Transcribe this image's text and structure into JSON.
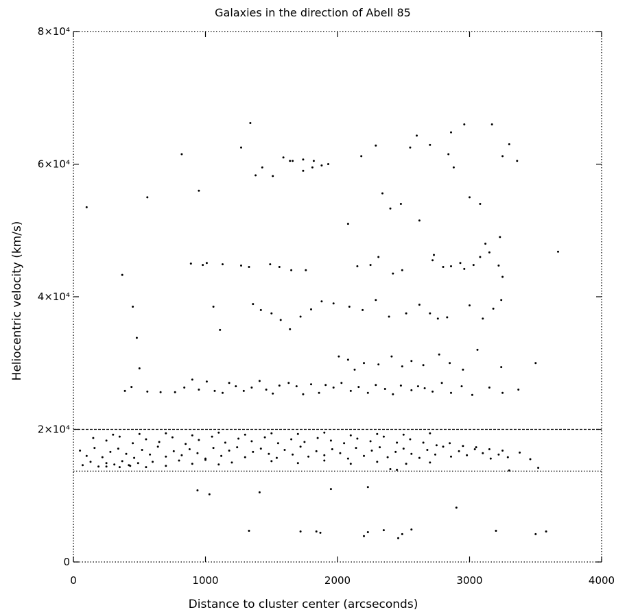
{
  "chart_data": {
    "type": "scatter",
    "title": "Galaxies in the direction of Abell 85",
    "xlabel": "Distance to cluster center (arcseconds)",
    "ylabel": "Heliocentric velocity (km/s)",
    "xlim": [
      0,
      4000
    ],
    "ylim": [
      0,
      80000
    ],
    "x_ticks": [
      {
        "value": 0,
        "label": "0"
      },
      {
        "value": 1000,
        "label": "1000"
      },
      {
        "value": 2000,
        "label": "2000"
      },
      {
        "value": 3000,
        "label": "3000"
      },
      {
        "value": 4000,
        "label": "4000"
      }
    ],
    "y_ticks": [
      {
        "value": 0,
        "label": "0"
      },
      {
        "value": 20000,
        "label": "2×10⁴"
      },
      {
        "value": 40000,
        "label": "4×10⁴"
      },
      {
        "value": 60000,
        "label": "6×10⁴"
      },
      {
        "value": 80000,
        "label": "8×10⁴"
      }
    ],
    "reference_lines": [
      {
        "y": 20000,
        "style": "dashed"
      },
      {
        "y": 13700,
        "style": "dotted"
      }
    ],
    "grid": false,
    "frame_style": "dotted",
    "marker_color": "#000000",
    "series": [
      {
        "values": [
          [
            100,
            53500
          ],
          [
            560,
            55000
          ],
          [
            370,
            43300
          ],
          [
            450,
            38500
          ],
          [
            480,
            33800
          ],
          [
            500,
            29200
          ],
          [
            820,
            61500
          ],
          [
            950,
            56000
          ],
          [
            1010,
            45100
          ],
          [
            1060,
            38500
          ],
          [
            1110,
            35000
          ],
          [
            1270,
            62500
          ],
          [
            1340,
            66200
          ],
          [
            1380,
            58300
          ],
          [
            1430,
            59500
          ],
          [
            1510,
            58200
          ],
          [
            1590,
            61000
          ],
          [
            1660,
            60500
          ],
          [
            1740,
            60700
          ],
          [
            1810,
            59500
          ],
          [
            1880,
            59800
          ],
          [
            1640,
            60500
          ],
          [
            1740,
            59000
          ],
          [
            1820,
            60500
          ],
          [
            1930,
            60000
          ],
          [
            2080,
            51000
          ],
          [
            2180,
            61200
          ],
          [
            2290,
            62800
          ],
          [
            2340,
            55600
          ],
          [
            2400,
            53300
          ],
          [
            2480,
            54000
          ],
          [
            2550,
            62500
          ],
          [
            2620,
            51500
          ],
          [
            2730,
            46300
          ],
          [
            2840,
            61500
          ],
          [
            2880,
            59500
          ],
          [
            3000,
            55000
          ],
          [
            3080,
            54000
          ],
          [
            3120,
            48000
          ],
          [
            3170,
            66000
          ],
          [
            3230,
            49000
          ],
          [
            3300,
            63000
          ],
          [
            3360,
            60500
          ],
          [
            3670,
            46800
          ],
          [
            890,
            45000
          ],
          [
            980,
            44800
          ],
          [
            1130,
            44900
          ],
          [
            1270,
            44700
          ],
          [
            1330,
            44500
          ],
          [
            1490,
            44900
          ],
          [
            1560,
            44500
          ],
          [
            1650,
            44000
          ],
          [
            1760,
            44000
          ],
          [
            2150,
            44600
          ],
          [
            2250,
            44800
          ],
          [
            2310,
            46000
          ],
          [
            2420,
            43500
          ],
          [
            2490,
            44000
          ],
          [
            2720,
            45500
          ],
          [
            2800,
            44500
          ],
          [
            2860,
            44600
          ],
          [
            2930,
            45100
          ],
          [
            2960,
            44200
          ],
          [
            3030,
            44800
          ],
          [
            3080,
            46000
          ],
          [
            3150,
            46700
          ],
          [
            3220,
            44700
          ],
          [
            3250,
            43000
          ],
          [
            1360,
            38900
          ],
          [
            1420,
            38000
          ],
          [
            1500,
            37500
          ],
          [
            1570,
            36500
          ],
          [
            1640,
            35100
          ],
          [
            1720,
            37000
          ],
          [
            1800,
            38100
          ],
          [
            1880,
            39300
          ],
          [
            1970,
            39000
          ],
          [
            2090,
            38500
          ],
          [
            2190,
            38000
          ],
          [
            2290,
            39500
          ],
          [
            2390,
            37000
          ],
          [
            2520,
            37500
          ],
          [
            2620,
            38800
          ],
          [
            2700,
            37500
          ],
          [
            2760,
            36700
          ],
          [
            2830,
            36900
          ],
          [
            3000,
            38700
          ],
          [
            3100,
            36700
          ],
          [
            3180,
            38200
          ],
          [
            3240,
            39500
          ],
          [
            390,
            25800
          ],
          [
            440,
            26400
          ],
          [
            560,
            25700
          ],
          [
            660,
            25600
          ],
          [
            770,
            25600
          ],
          [
            840,
            26300
          ],
          [
            900,
            27500
          ],
          [
            950,
            26000
          ],
          [
            1010,
            27200
          ],
          [
            1070,
            25800
          ],
          [
            1130,
            25500
          ],
          [
            1180,
            27000
          ],
          [
            1230,
            26500
          ],
          [
            1290,
            25800
          ],
          [
            1350,
            26300
          ],
          [
            1410,
            27300
          ],
          [
            1460,
            26000
          ],
          [
            1510,
            25400
          ],
          [
            1560,
            26600
          ],
          [
            1630,
            27000
          ],
          [
            1690,
            26500
          ],
          [
            1740,
            25300
          ],
          [
            1800,
            26800
          ],
          [
            1860,
            25500
          ],
          [
            1910,
            26700
          ],
          [
            1970,
            26300
          ],
          [
            2030,
            27000
          ],
          [
            2100,
            25800
          ],
          [
            2160,
            26400
          ],
          [
            2230,
            25500
          ],
          [
            2290,
            26700
          ],
          [
            2360,
            26100
          ],
          [
            2420,
            25300
          ],
          [
            2480,
            26600
          ],
          [
            2560,
            25900
          ],
          [
            2610,
            26500
          ],
          [
            2660,
            26200
          ],
          [
            2720,
            25700
          ],
          [
            2790,
            27000
          ],
          [
            2860,
            25500
          ],
          [
            2940,
            26500
          ],
          [
            3020,
            25200
          ],
          [
            3150,
            26300
          ],
          [
            3250,
            25500
          ],
          [
            3370,
            26000
          ],
          [
            2010,
            31000
          ],
          [
            2080,
            30500
          ],
          [
            2130,
            29000
          ],
          [
            2200,
            30000
          ],
          [
            2310,
            29800
          ],
          [
            2410,
            31000
          ],
          [
            2490,
            29500
          ],
          [
            2560,
            30300
          ],
          [
            2650,
            29700
          ],
          [
            2770,
            31300
          ],
          [
            2850,
            30000
          ],
          [
            2950,
            29000
          ],
          [
            3060,
            32000
          ],
          [
            3240,
            29400
          ],
          [
            3500,
            30000
          ],
          [
            2600,
            64300
          ],
          [
            2700,
            62900
          ],
          [
            2860,
            64800
          ],
          [
            2960,
            66000
          ],
          [
            3250,
            61200
          ],
          [
            50,
            16800
          ],
          [
            100,
            16000
          ],
          [
            160,
            17200
          ],
          [
            220,
            15800
          ],
          [
            280,
            16600
          ],
          [
            340,
            17100
          ],
          [
            400,
            16300
          ],
          [
            460,
            15700
          ],
          [
            520,
            16900
          ],
          [
            580,
            16200
          ],
          [
            640,
            17400
          ],
          [
            700,
            15900
          ],
          [
            760,
            16700
          ],
          [
            820,
            16100
          ],
          [
            880,
            17000
          ],
          [
            940,
            16400
          ],
          [
            1000,
            15600
          ],
          [
            1060,
            17200
          ],
          [
            1120,
            16000
          ],
          [
            1180,
            16800
          ],
          [
            1240,
            17300
          ],
          [
            1300,
            15800
          ],
          [
            1360,
            16600
          ],
          [
            1420,
            17100
          ],
          [
            1480,
            16300
          ],
          [
            1540,
            15700
          ],
          [
            1600,
            16900
          ],
          [
            1660,
            16200
          ],
          [
            1720,
            17400
          ],
          [
            1780,
            15900
          ],
          [
            1840,
            16700
          ],
          [
            1900,
            16100
          ],
          [
            1960,
            17000
          ],
          [
            2020,
            16400
          ],
          [
            2080,
            15600
          ],
          [
            2140,
            17200
          ],
          [
            2200,
            16000
          ],
          [
            2260,
            16800
          ],
          [
            2320,
            17300
          ],
          [
            2380,
            15800
          ],
          [
            2440,
            16600
          ],
          [
            2500,
            17100
          ],
          [
            2560,
            16300
          ],
          [
            2620,
            15700
          ],
          [
            2680,
            16900
          ],
          [
            2740,
            16200
          ],
          [
            2800,
            17400
          ],
          [
            2860,
            15900
          ],
          [
            2920,
            16700
          ],
          [
            2980,
            16100
          ],
          [
            3040,
            17000
          ],
          [
            3100,
            16400
          ],
          [
            3160,
            15600
          ],
          [
            3220,
            16200
          ],
          [
            3290,
            15800
          ],
          [
            3380,
            16500
          ],
          [
            3460,
            15500
          ],
          [
            3520,
            14200
          ],
          [
            70,
            14600
          ],
          [
            130,
            15100
          ],
          [
            190,
            14400
          ],
          [
            250,
            14900
          ],
          [
            310,
            14700
          ],
          [
            370,
            15200
          ],
          [
            430,
            14500
          ],
          [
            490,
            14900
          ],
          [
            550,
            14300
          ],
          [
            150,
            18700
          ],
          [
            250,
            18300
          ],
          [
            350,
            18900
          ],
          [
            450,
            17900
          ],
          [
            550,
            18500
          ],
          [
            650,
            18100
          ],
          [
            750,
            18800
          ],
          [
            850,
            17800
          ],
          [
            950,
            18400
          ],
          [
            1050,
            18900
          ],
          [
            1150,
            18000
          ],
          [
            1250,
            18600
          ],
          [
            1350,
            18200
          ],
          [
            1450,
            18800
          ],
          [
            1550,
            17900
          ],
          [
            1650,
            18500
          ],
          [
            1750,
            18100
          ],
          [
            1850,
            18700
          ],
          [
            1950,
            18300
          ],
          [
            2050,
            17900
          ],
          [
            2150,
            18600
          ],
          [
            2250,
            18200
          ],
          [
            2350,
            18900
          ],
          [
            2450,
            18000
          ],
          [
            2550,
            18500
          ],
          [
            2650,
            18000
          ],
          [
            2750,
            17600
          ],
          [
            2850,
            17900
          ],
          [
            2950,
            17500
          ],
          [
            3050,
            17300
          ],
          [
            3150,
            17000
          ],
          [
            3250,
            16800
          ],
          [
            250,
            14400
          ],
          [
            350,
            14300
          ],
          [
            420,
            14600
          ],
          [
            600,
            15100
          ],
          [
            700,
            14500
          ],
          [
            800,
            15300
          ],
          [
            900,
            14800
          ],
          [
            1000,
            15400
          ],
          [
            1100,
            14700
          ],
          [
            1200,
            15000
          ],
          [
            1500,
            15200
          ],
          [
            1700,
            14900
          ],
          [
            1900,
            15300
          ],
          [
            2100,
            14800
          ],
          [
            2300,
            15100
          ],
          [
            2400,
            14000
          ],
          [
            2450,
            13900
          ],
          [
            2520,
            14800
          ],
          [
            2700,
            15000
          ],
          [
            3300,
            13800
          ],
          [
            300,
            19200
          ],
          [
            500,
            19300
          ],
          [
            700,
            19400
          ],
          [
            900,
            19100
          ],
          [
            1100,
            19500
          ],
          [
            1300,
            19200
          ],
          [
            1500,
            19400
          ],
          [
            1700,
            19300
          ],
          [
            1900,
            19500
          ],
          [
            2100,
            19100
          ],
          [
            2300,
            19300
          ],
          [
            2500,
            19200
          ],
          [
            2700,
            19400
          ],
          [
            940,
            10800
          ],
          [
            1030,
            10200
          ],
          [
            1410,
            10500
          ],
          [
            1950,
            11000
          ],
          [
            2230,
            11300
          ],
          [
            2900,
            8200
          ],
          [
            1330,
            4700
          ],
          [
            1720,
            4600
          ],
          [
            1840,
            4600
          ],
          [
            1870,
            4400
          ],
          [
            2200,
            3900
          ],
          [
            2230,
            4500
          ],
          [
            2350,
            4800
          ],
          [
            2460,
            3600
          ],
          [
            2490,
            4200
          ],
          [
            2560,
            4900
          ],
          [
            3200,
            4700
          ],
          [
            3500,
            4200
          ],
          [
            3580,
            4600
          ]
        ]
      }
    ]
  }
}
